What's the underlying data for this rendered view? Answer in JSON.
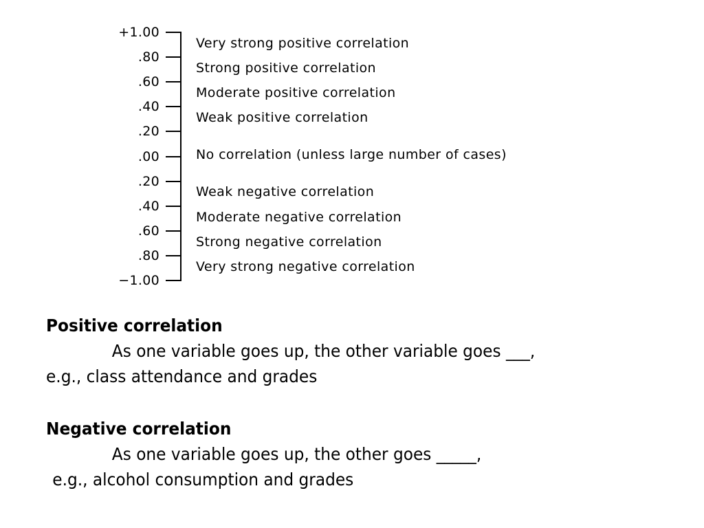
{
  "scale": {
    "ticks": [
      "+1.00",
      ".80",
      ".60",
      ".40",
      ".20",
      ".00",
      ".20",
      ".40",
      ".60",
      ".80",
      "−1.00"
    ],
    "descriptions": [
      "Very strong positive correlation",
      "Strong positive correlation",
      "Moderate positive correlation",
      "Weak positive correlation",
      "No correlation (unless large number of cases)",
      "Weak negative correlation",
      "Moderate negative correlation",
      "Strong negative correlation",
      "Very strong negative correlation"
    ]
  },
  "positive": {
    "heading": "Positive correlation",
    "line1": "As one variable goes up, the other variable goes ___,",
    "line2": "e.g., class attendance and grades"
  },
  "negative": {
    "heading": "Negative correlation",
    "line1": "As one variable goes up, the other goes _____,",
    "line2": "e.g., alcohol consumption and grades"
  }
}
